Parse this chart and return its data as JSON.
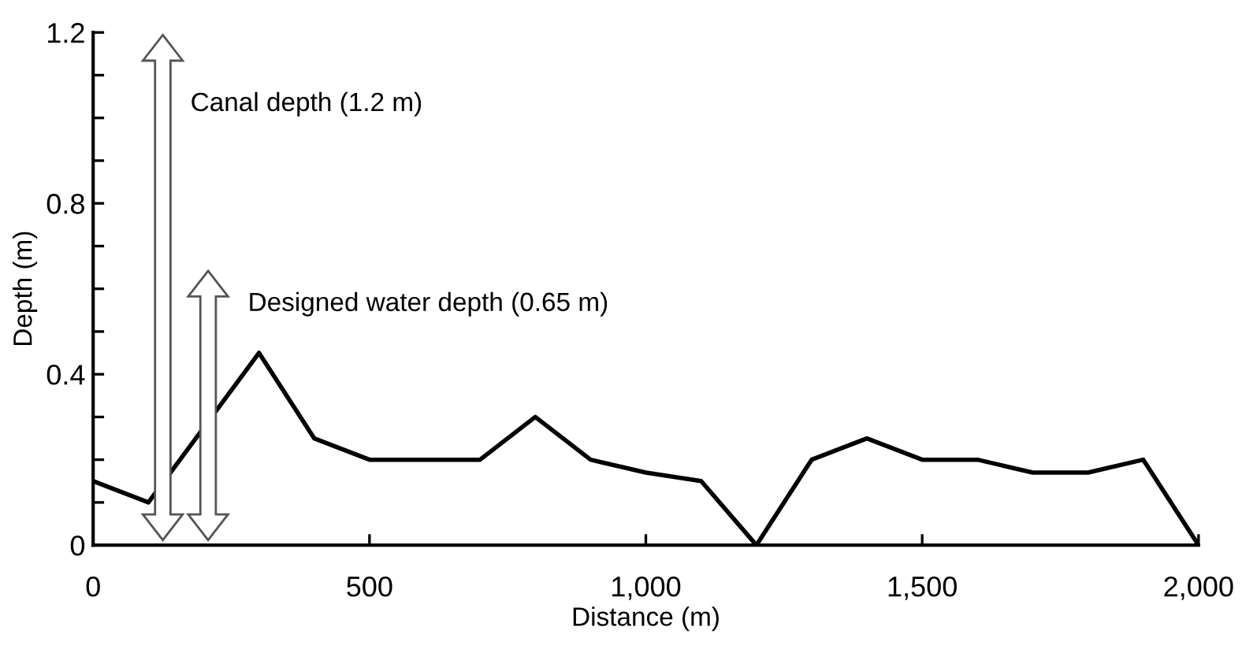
{
  "chart_data": {
    "type": "line",
    "xlabel": "Distance (m)",
    "ylabel": "Depth (m)",
    "x": [
      0,
      100,
      300,
      400,
      500,
      600,
      700,
      800,
      900,
      1000,
      1100,
      1200,
      1300,
      1400,
      1500,
      1600,
      1700,
      1800,
      1900,
      2000
    ],
    "series": [
      {
        "color": "#000000",
        "values": [
          0.15,
          0.1,
          0.45,
          0.25,
          0.2,
          0.2,
          0.2,
          0.3,
          0.2,
          0.17,
          0.15,
          0,
          0.2,
          0.25,
          0.2,
          0.2,
          0.17,
          0.17,
          0.2,
          0
        ]
      }
    ],
    "xlim": [
      0,
      2000
    ],
    "ylim": [
      0,
      1.2
    ],
    "xticks": [
      0,
      500,
      {
        "value": 1000,
        "label": "1,000"
      },
      {
        "value": 1500,
        "label": "1,500"
      },
      {
        "value": 2000,
        "label": "2,000"
      }
    ],
    "yticks": [
      0,
      {
        "value": 0.1,
        "label": null
      },
      {
        "value": 0.2,
        "label": null
      },
      {
        "value": 0.3,
        "label": null
      },
      0.4,
      {
        "value": 0.5,
        "label": null
      },
      {
        "value": 0.6,
        "label": null
      },
      {
        "value": 0.7,
        "label": null
      },
      0.8,
      {
        "value": 0.9,
        "label": null
      },
      {
        "value": 1.0,
        "label": null
      },
      {
        "value": 1.1,
        "label": null
      },
      1.2
    ],
    "annotations": [
      "Canal depth (1.2 m)",
      "Designed water depth (0.65 m)"
    ],
    "grid": false,
    "legend": false,
    "marker": "none",
    "line_style": "solid"
  }
}
